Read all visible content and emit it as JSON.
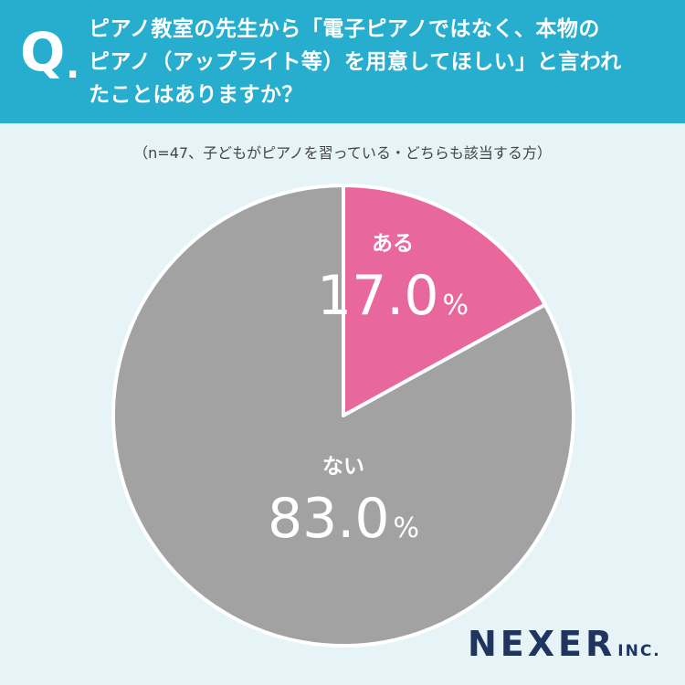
{
  "question": {
    "mark": "Q",
    "dot": ".",
    "lines": [
      "ピアノ教室の先生から「電子ピアノではなく、本物の",
      "ピアノ（アップライト等）を用意してほしい」と言われ",
      "たことはありますか？"
    ]
  },
  "note": "（n=47、子どもがピアノを習っている・どちらも該当する方）",
  "colors": {
    "banner": "#27aecf",
    "yes": "#e8679d",
    "no": "#a2a2a2",
    "background": "#e6f3f7"
  },
  "chart_data": {
    "type": "pie",
    "slices": [
      {
        "label": "ある",
        "value": 17.0,
        "display": "17.0",
        "unit": "%",
        "color": "#e8679d"
      },
      {
        "label": "ない",
        "value": 83.0,
        "display": "83.0",
        "unit": "%",
        "color": "#a2a2a2"
      }
    ],
    "start_angle": "12 o'clock",
    "direction": "clockwise"
  },
  "brand": {
    "name": "NEXER",
    "suffix": "INC."
  }
}
